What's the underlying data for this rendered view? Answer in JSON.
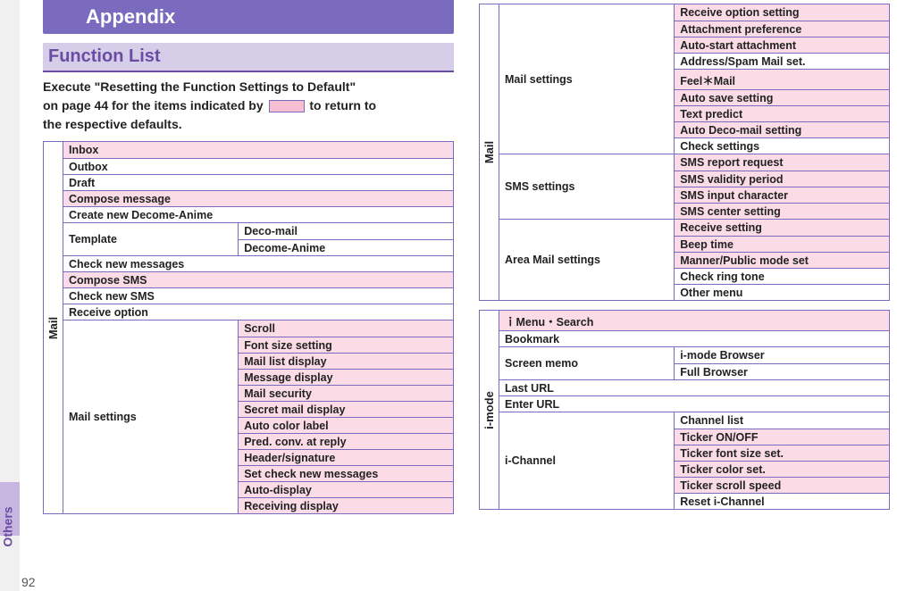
{
  "sidebar": {
    "label": "Others"
  },
  "page_number": "92",
  "header": {
    "appendix": "Appendix",
    "section": "Function List"
  },
  "intro": {
    "line1": "Execute \"Resetting the Function Settings to Default\"",
    "line2_a": "on page 44 for the items indicated by ",
    "line2_b": " to return to",
    "line3": "the respective defaults."
  },
  "colors": {
    "purple": "#7a6bbf",
    "purple_text": "#6a4ca3",
    "lavender": "#d6cde8",
    "pink": "#fadbe6"
  },
  "left_table": {
    "category": "Mail",
    "rows": [
      {
        "type": "full",
        "val": "Inbox",
        "pink": true
      },
      {
        "type": "full",
        "val": "Outbox",
        "pink": false
      },
      {
        "type": "full",
        "val": "Draft",
        "pink": false
      },
      {
        "type": "full",
        "val": "Compose message",
        "pink": true
      },
      {
        "type": "full",
        "val": "Create new Decome-Anime",
        "pink": false
      },
      {
        "type": "split",
        "left": "Template",
        "right": [
          {
            "val": "Deco-mail",
            "pink": false
          },
          {
            "val": "Decome-Anime",
            "pink": false
          }
        ]
      },
      {
        "type": "full",
        "val": "Check new messages",
        "pink": false
      },
      {
        "type": "full",
        "val": "Compose SMS",
        "pink": true
      },
      {
        "type": "full",
        "val": "Check new SMS",
        "pink": false
      },
      {
        "type": "full",
        "val": "Receive option",
        "pink": false
      },
      {
        "type": "split",
        "left": "Mail settings",
        "right": [
          {
            "val": "Scroll",
            "pink": true
          },
          {
            "val": "Font size setting",
            "pink": true
          },
          {
            "val": "Mail list display",
            "pink": true
          },
          {
            "val": "Message display",
            "pink": true
          },
          {
            "val": "Mail security",
            "pink": true
          },
          {
            "val": "Secret mail display",
            "pink": true
          },
          {
            "val": "Auto color label",
            "pink": true
          },
          {
            "val": "Pred. conv. at reply",
            "pink": true
          },
          {
            "val": "Header/signature",
            "pink": true
          },
          {
            "val": "Set check new messages",
            "pink": true
          },
          {
            "val": "Auto-display",
            "pink": true
          },
          {
            "val": "Receiving display",
            "pink": true
          }
        ]
      }
    ]
  },
  "right_mail_table": {
    "category": "Mail",
    "groups": [
      {
        "left": "Mail settings",
        "right": [
          {
            "val": "Receive option setting",
            "pink": true
          },
          {
            "val": "Attachment preference",
            "pink": true
          },
          {
            "val": "Auto-start attachment",
            "pink": true
          },
          {
            "val": "Address/Spam Mail set.",
            "pink": false
          },
          {
            "val": "Feel＊Mail",
            "pink": true
          },
          {
            "val": "Auto save setting",
            "pink": true
          },
          {
            "val": "Text predict",
            "pink": true
          },
          {
            "val": "Auto Deco-mail setting",
            "pink": true
          },
          {
            "val": "Check settings",
            "pink": false
          }
        ]
      },
      {
        "left": "SMS settings",
        "right": [
          {
            "val": "SMS report request",
            "pink": true
          },
          {
            "val": "SMS validity period",
            "pink": true
          },
          {
            "val": "SMS input character",
            "pink": true
          },
          {
            "val": "SMS center setting",
            "pink": true
          }
        ]
      },
      {
        "left": "Area Mail settings",
        "right": [
          {
            "val": "Receive setting",
            "pink": true
          },
          {
            "val": "Beep time",
            "pink": true
          },
          {
            "val": "Manner/Public mode set",
            "pink": true
          },
          {
            "val": "Check ring tone",
            "pink": false
          },
          {
            "val": "Other menu",
            "pink": false
          }
        ]
      }
    ]
  },
  "imode_table": {
    "category": "i-mode",
    "rows": [
      {
        "type": "full",
        "val": "ｉMenu・Search",
        "pink": true
      },
      {
        "type": "full",
        "val": "Bookmark",
        "pink": false
      },
      {
        "type": "split",
        "left": "Screen memo",
        "right": [
          {
            "val": "i-mode Browser",
            "pink": false
          },
          {
            "val": "Full Browser",
            "pink": false
          }
        ]
      },
      {
        "type": "full",
        "val": "Last URL",
        "pink": false
      },
      {
        "type": "full",
        "val": "Enter URL",
        "pink": false
      },
      {
        "type": "split",
        "left": "i-Channel",
        "right": [
          {
            "val": "Channel list",
            "pink": false
          },
          {
            "val": "Ticker ON/OFF",
            "pink": true
          },
          {
            "val": "Ticker font size set.",
            "pink": true
          },
          {
            "val": "Ticker color set.",
            "pink": true
          },
          {
            "val": "Ticker scroll speed",
            "pink": true
          },
          {
            "val": "Reset i-Channel",
            "pink": false
          }
        ]
      }
    ]
  }
}
